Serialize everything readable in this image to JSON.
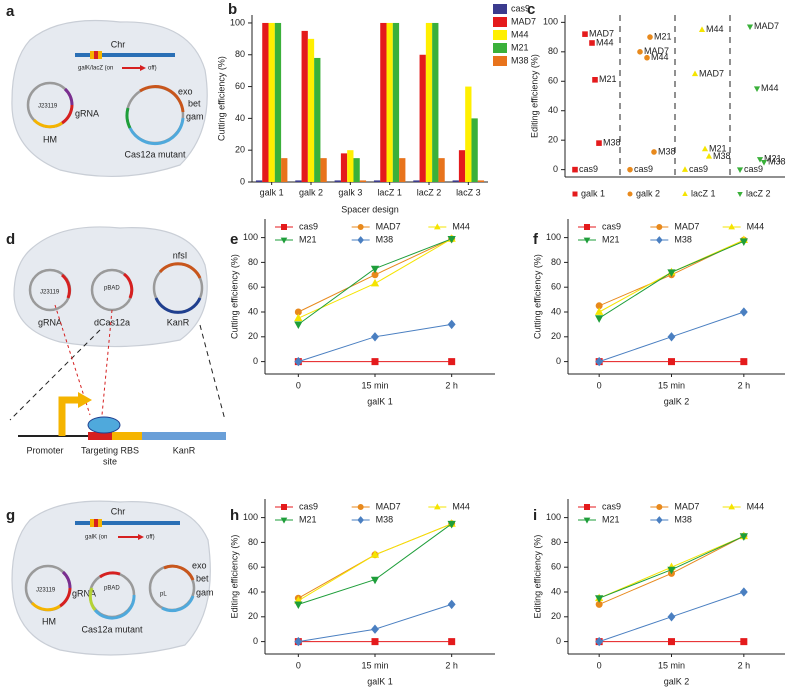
{
  "chart_data": [
    {
      "type": "bar",
      "panel": "b",
      "xlabel": "Spacer design",
      "ylabel": "Cutting efficiency (%)",
      "categories": [
        "galk 1",
        "galk 2",
        "galk 3",
        "lacZ 1",
        "lacZ 2",
        "lacZ 3"
      ],
      "series": [
        {
          "name": "cas9",
          "color": "#3b3b8e",
          "values": [
            1,
            1,
            1,
            1,
            1,
            1
          ]
        },
        {
          "name": "MAD7",
          "color": "#e41a1c",
          "values": [
            100,
            95,
            18,
            100,
            80,
            20
          ]
        },
        {
          "name": "M44",
          "color": "#ffef00",
          "values": [
            100,
            90,
            20,
            100,
            100,
            60
          ]
        },
        {
          "name": "M21",
          "color": "#3ab03a",
          "values": [
            100,
            78,
            15,
            100,
            100,
            40
          ]
        },
        {
          "name": "M38",
          "color": "#e8731c",
          "values": [
            15,
            15,
            1,
            15,
            15,
            1
          ]
        }
      ],
      "ylim": [
        0,
        105
      ],
      "yticks": [
        0,
        20,
        40,
        60,
        80,
        100
      ],
      "legend": "upper-right"
    },
    {
      "type": "scatter",
      "panel": "c",
      "ylabel": "Editing efficiency (%)",
      "point_labels": [
        "cas9",
        "MAD7",
        "M44",
        "M21",
        "M38"
      ],
      "series": [
        {
          "name": "galk 1",
          "color": "#e41a1c",
          "marker": "square",
          "values": [
            0,
            92,
            86,
            61,
            18
          ]
        },
        {
          "name": "galk 2",
          "color": "#e8891c",
          "marker": "circle",
          "values": [
            0,
            80,
            76,
            90,
            12
          ]
        },
        {
          "name": "lacZ 1",
          "color": "#f5e400",
          "marker": "triangle",
          "values": [
            0,
            65,
            95,
            14,
            9
          ]
        },
        {
          "name": "lacZ 2",
          "color": "#3ab03a",
          "marker": "triangle-down",
          "values": [
            0,
            97,
            55,
            7,
            5
          ]
        }
      ],
      "ylim": [
        -5,
        105
      ],
      "yticks": [
        0,
        20,
        40,
        60,
        80,
        100
      ],
      "legend": "bottom"
    },
    {
      "type": "line",
      "panel": "e",
      "xlabel": "galK 1",
      "ylabel": "Cutting efficiency (%)",
      "categories": [
        "0",
        "15 min",
        "2 h"
      ],
      "series": [
        {
          "name": "cas9",
          "color": "#e41a1c",
          "marker": "square",
          "values": [
            0,
            0,
            0
          ]
        },
        {
          "name": "MAD7",
          "color": "#e8891c",
          "marker": "circle",
          "values": [
            40,
            70,
            99
          ]
        },
        {
          "name": "M44",
          "color": "#f5e400",
          "marker": "triangle",
          "values": [
            35,
            63,
            99
          ]
        },
        {
          "name": "M21",
          "color": "#1e9e3a",
          "marker": "triangle-down",
          "values": [
            30,
            75,
            99
          ]
        },
        {
          "name": "M38",
          "color": "#4a7fc1",
          "marker": "diamond",
          "values": [
            0,
            20,
            30
          ]
        }
      ],
      "ylim": [
        -10,
        115
      ],
      "yticks": [
        0,
        20,
        40,
        60,
        80,
        100
      ],
      "legend": "top"
    },
    {
      "type": "line",
      "panel": "f",
      "xlabel": "galK 2",
      "ylabel": "Cutting efficiency (%)",
      "categories": [
        "0",
        "15 min",
        "2 h"
      ],
      "series": [
        {
          "name": "cas9",
          "color": "#e41a1c",
          "marker": "square",
          "values": [
            0,
            0,
            0
          ]
        },
        {
          "name": "MAD7",
          "color": "#e8891c",
          "marker": "circle",
          "values": [
            45,
            70,
            98
          ]
        },
        {
          "name": "M44",
          "color": "#f5e400",
          "marker": "triangle",
          "values": [
            40,
            72,
            98
          ]
        },
        {
          "name": "M21",
          "color": "#1e9e3a",
          "marker": "triangle-down",
          "values": [
            35,
            72,
            97
          ]
        },
        {
          "name": "M38",
          "color": "#4a7fc1",
          "marker": "diamond",
          "values": [
            0,
            20,
            40
          ]
        }
      ],
      "ylim": [
        -10,
        115
      ],
      "yticks": [
        0,
        20,
        40,
        60,
        80,
        100
      ],
      "legend": "top"
    },
    {
      "type": "line",
      "panel": "h",
      "xlabel": "galK 1",
      "ylabel": "Editing efficiency (%)",
      "categories": [
        "0",
        "15 min",
        "2 h"
      ],
      "series": [
        {
          "name": "cas9",
          "color": "#e41a1c",
          "marker": "square",
          "values": [
            0,
            0,
            0
          ]
        },
        {
          "name": "MAD7",
          "color": "#e8891c",
          "marker": "circle",
          "values": [
            35,
            70,
            95
          ]
        },
        {
          "name": "M44",
          "color": "#f5e400",
          "marker": "triangle",
          "values": [
            33,
            70,
            95
          ]
        },
        {
          "name": "M21",
          "color": "#1e9e3a",
          "marker": "triangle-down",
          "values": [
            30,
            50,
            95
          ]
        },
        {
          "name": "M38",
          "color": "#4a7fc1",
          "marker": "diamond",
          "values": [
            0,
            10,
            30
          ]
        }
      ],
      "ylim": [
        -10,
        115
      ],
      "yticks": [
        0,
        20,
        40,
        60,
        80,
        100
      ],
      "legend": "top"
    },
    {
      "type": "line",
      "panel": "i",
      "xlabel": "galK 2",
      "ylabel": "Editing efficiency (%)",
      "categories": [
        "0",
        "15 min",
        "2 h"
      ],
      "series": [
        {
          "name": "cas9",
          "color": "#e41a1c",
          "marker": "square",
          "values": [
            0,
            0,
            0
          ]
        },
        {
          "name": "MAD7",
          "color": "#e8891c",
          "marker": "circle",
          "values": [
            30,
            55,
            85
          ]
        },
        {
          "name": "M44",
          "color": "#f5e400",
          "marker": "triangle",
          "values": [
            35,
            60,
            85
          ]
        },
        {
          "name": "M21",
          "color": "#1e9e3a",
          "marker": "triangle-down",
          "values": [
            35,
            58,
            85
          ]
        },
        {
          "name": "M38",
          "color": "#4a7fc1",
          "marker": "diamond",
          "values": [
            0,
            20,
            40
          ]
        }
      ],
      "ylim": [
        -10,
        115
      ],
      "yticks": [
        0,
        20,
        40,
        60,
        80,
        100
      ],
      "legend": "top"
    }
  ],
  "diagrams": [
    {
      "panel": "a",
      "labels": [
        "Chr",
        "galK/lacZ (on",
        "off)",
        "J23119",
        "gRNA",
        "HM",
        "exo",
        "bet",
        "gam",
        "Cas12a mutant"
      ]
    },
    {
      "panel": "d",
      "labels": [
        "nfsI",
        "J23119",
        "gRNA",
        "pBAD",
        "dCas12a",
        "KanR",
        "Promoter",
        "Targeting RBS",
        "site",
        "KanR"
      ]
    },
    {
      "panel": "g",
      "labels": [
        "Chr",
        "galK (on",
        "off)",
        "J23119",
        "gRNA",
        "HM",
        "pBAD",
        "Cas12a mutant",
        "pL",
        "exo",
        "bet",
        "gam"
      ]
    }
  ]
}
